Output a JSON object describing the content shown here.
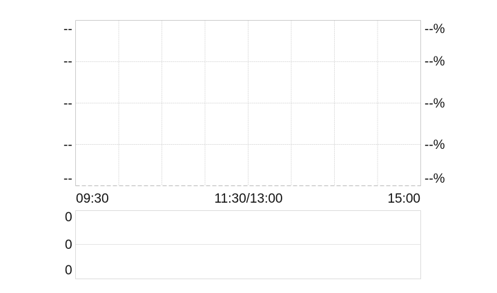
{
  "chart_data": [
    {
      "type": "line",
      "left_axis_ticks": [
        "--",
        "--",
        "--",
        "--",
        "--"
      ],
      "right_axis_ticks": [
        "--%",
        "--%",
        "--%",
        "--%",
        "--%"
      ],
      "x_tick_labels": [
        "09:30",
        "11:30/13:00",
        "15:00"
      ],
      "series": [],
      "grid": true,
      "grid_color": "#dddddd",
      "border_color": "#cccccc"
    },
    {
      "type": "bar",
      "left_axis_ticks": [
        "0",
        "0",
        "0"
      ],
      "series": [],
      "grid": true
    }
  ]
}
